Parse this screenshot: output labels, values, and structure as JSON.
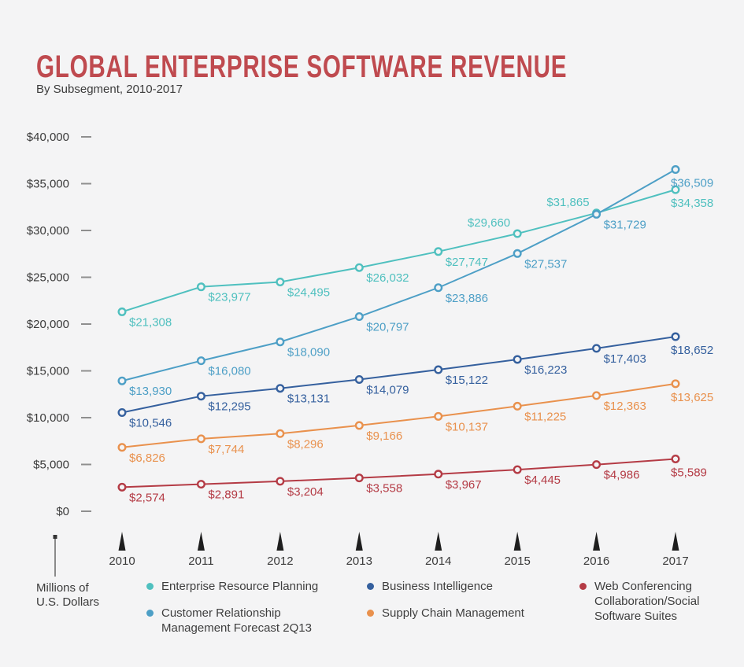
{
  "page": {
    "background": "#f4f4f5"
  },
  "header": {
    "title": "GLOBAL ENTERPRISE SOFTWARE REVENUE",
    "subtitle": "By Subsegment, 2010-2017",
    "title_color": "#bf4a4f"
  },
  "chart_data": {
    "type": "line",
    "title": "Global Enterprise Software Revenue",
    "subtitle": "By Subsegment, 2010-2017",
    "x": [
      2010,
      2011,
      2012,
      2013,
      2014,
      2015,
      2016,
      2017
    ],
    "ylabel": "Millions of U.S. Dollars",
    "ylim": [
      0,
      40000
    ],
    "y_tick_step": 5000,
    "grid": false,
    "legend_position": "bottom",
    "unit_note_lines": [
      "Millions of",
      "U.S. Dollars"
    ],
    "series": [
      {
        "name": "Enterprise Resource Planning",
        "color": "#4fc0bf",
        "values": [
          21308,
          23977,
          24495,
          26032,
          27747,
          29660,
          31865,
          34358
        ],
        "label_overrides": {
          "5": "above-left",
          "6": "above-left"
        }
      },
      {
        "name": "Customer Relationship Management Forecast 2Q13",
        "color": "#4d9fc6",
        "values": [
          13930,
          16080,
          18090,
          20797,
          23886,
          27537,
          31729,
          36509
        ],
        "label_overrides": {}
      },
      {
        "name": "Business Intelligence",
        "color": "#35609e",
        "values": [
          10546,
          12295,
          13131,
          14079,
          15122,
          16223,
          17403,
          18652
        ],
        "label_overrides": {}
      },
      {
        "name": "Supply Chain Management",
        "color": "#e9914d",
        "values": [
          6826,
          7744,
          8296,
          9166,
          10137,
          11225,
          12363,
          13625
        ],
        "label_overrides": {}
      },
      {
        "name": "Web Conferencing Collaboration/Social Software Suites",
        "color": "#b43b45",
        "values": [
          2574,
          2891,
          3204,
          3558,
          3967,
          4445,
          4986,
          5589
        ],
        "label_overrides": {}
      }
    ],
    "legend_columns": [
      [
        {
          "series": 0,
          "lines": [
            "Enterprise Resource Planning"
          ]
        },
        {
          "series": 1,
          "lines": [
            "Customer Relationship",
            "Management Forecast 2Q13"
          ]
        }
      ],
      [
        {
          "series": 2,
          "lines": [
            "Business Intelligence"
          ]
        },
        {
          "series": 3,
          "lines": [
            "Supply Chain Management"
          ]
        }
      ],
      [
        {
          "series": 4,
          "lines": [
            "Web Conferencing",
            "Collaboration/Social",
            "Software Suites"
          ]
        }
      ]
    ]
  }
}
